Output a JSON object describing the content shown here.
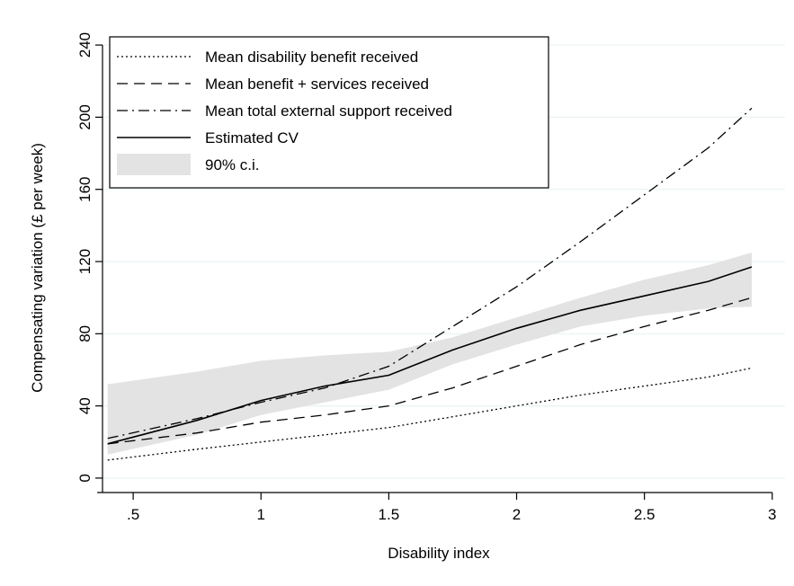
{
  "chart_data": {
    "type": "line",
    "title": "",
    "xlabel": "Disability index",
    "ylabel": "Compensating variation (£ per week)",
    "xlim": [
      0.38,
      3.05
    ],
    "ylim": [
      -8,
      250
    ],
    "x_ticks": [
      0.5,
      1,
      1.5,
      2,
      2.5,
      3
    ],
    "x_tick_labels": [
      ".5",
      "1",
      "1.5",
      "2",
      "2.5",
      "3"
    ],
    "y_ticks": [
      0,
      40,
      80,
      120,
      160,
      200,
      240
    ],
    "y_tick_labels": [
      "0",
      "40",
      "80",
      "120",
      "160",
      "200",
      "240"
    ],
    "grid": true,
    "legend_position": "top-left",
    "series": [
      {
        "name": "Mean disability benefit received",
        "style": "dotted",
        "x": [
          0.4,
          0.75,
          1,
          1.25,
          1.5,
          1.75,
          2,
          2.25,
          2.5,
          2.75,
          2.92
        ],
        "y": [
          10,
          16,
          20,
          24,
          28,
          34,
          40,
          46,
          51,
          56,
          61
        ]
      },
      {
        "name": "Mean benefit + services received",
        "style": "dashed",
        "x": [
          0.4,
          0.75,
          1,
          1.25,
          1.5,
          1.75,
          2,
          2.25,
          2.5,
          2.75,
          2.92
        ],
        "y": [
          19,
          25,
          31,
          35,
          40,
          50,
          62,
          74,
          84,
          93,
          100
        ]
      },
      {
        "name": "Mean total external support received",
        "style": "dashdot",
        "x": [
          0.4,
          0.75,
          1,
          1.25,
          1.5,
          1.75,
          2,
          2.25,
          2.5,
          2.75,
          2.92
        ],
        "y": [
          22,
          33,
          42,
          50,
          62,
          84,
          106,
          131,
          157,
          183,
          205
        ]
      },
      {
        "name": "Estimated CV",
        "style": "solid",
        "x": [
          0.4,
          0.75,
          1,
          1.25,
          1.5,
          1.75,
          2,
          2.25,
          2.5,
          2.75,
          2.92
        ],
        "y": [
          19,
          32,
          43,
          51,
          57,
          71,
          83,
          93,
          101,
          109,
          117
        ]
      }
    ],
    "ci_band": {
      "name": "90% c.i.",
      "x": [
        0.4,
        0.75,
        1,
        1.25,
        1.5,
        1.75,
        2,
        2.25,
        2.5,
        2.75,
        2.92
      ],
      "lower": [
        13,
        24,
        35,
        42,
        49,
        63,
        74,
        84,
        90,
        94,
        95
      ],
      "upper": [
        52,
        59,
        65,
        68,
        70,
        78,
        89,
        100,
        110,
        118,
        125
      ]
    }
  },
  "colors": {
    "line": "#000000",
    "band": "#e3e3e3",
    "grid": "#eaf2f3",
    "background": "#ffffff"
  }
}
